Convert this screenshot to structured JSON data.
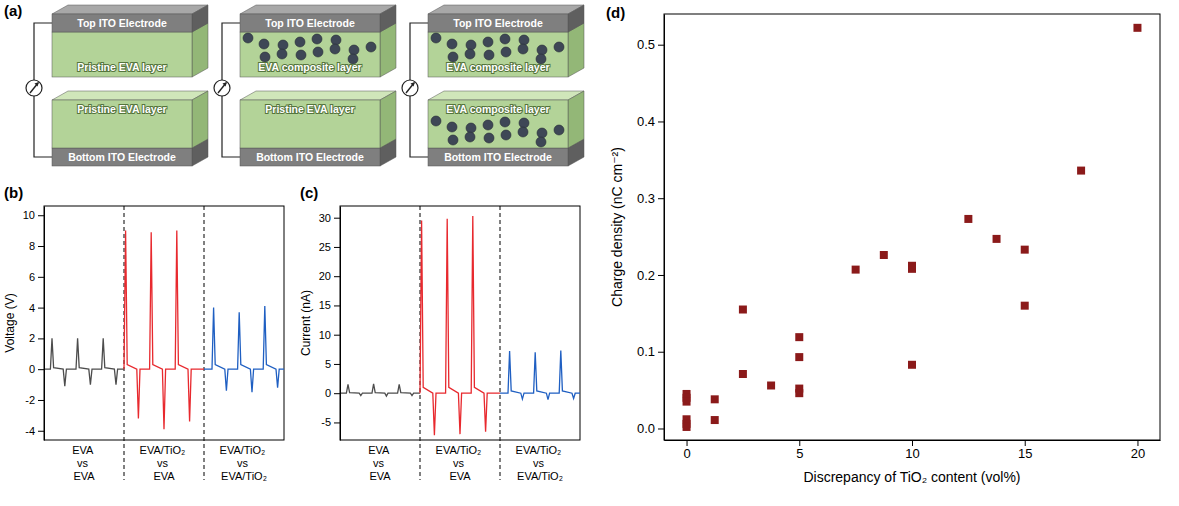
{
  "diagram": {
    "label": "(a)",
    "top_electrode": "Top ITO Electrode",
    "bottom_electrode": "Bottom ITO Electrode",
    "devices": [
      {
        "top_layer": {
          "text": "Pristine EVA layer",
          "particles": false
        },
        "bottom_layer": {
          "text": "Pristine EVA layer",
          "particles": false
        }
      },
      {
        "top_layer": {
          "text": "EVA composite layer",
          "particles": true
        },
        "bottom_layer": {
          "text": "Pristine EVA layer",
          "particles": false
        }
      },
      {
        "top_layer": {
          "text": "EVA composite layer",
          "particles": true
        },
        "bottom_layer": {
          "text": "EVA composite layer",
          "particles": true
        }
      }
    ]
  },
  "chart_data": [
    {
      "type": "line",
      "label": "(b)",
      "y_label": "Voltage (V)",
      "categories": [
        "EVA vs EVA",
        "EVA/TiO₂ vs EVA",
        "EVA/TiO₂ vs EVA/TiO₂"
      ],
      "xlim": [
        0,
        30
      ],
      "ylim": [
        -4.6,
        10.6
      ],
      "yticks": [
        -4,
        -2,
        0,
        2,
        4,
        6,
        8,
        10
      ],
      "tick_labels": "y",
      "series": [
        {
          "color": "#4d4d4d",
          "x": [
            0,
            0.8,
            1.0,
            1.2,
            2.4,
            2.6,
            2.8,
            4.0,
            4.2,
            4.4,
            5.6,
            5.8,
            6.0,
            7.2,
            7.4,
            7.6,
            8.8,
            9.0,
            9.2,
            10
          ],
          "values": [
            0,
            0,
            2.0,
            0.1,
            0,
            -1.1,
            0,
            0,
            2.0,
            0.1,
            0,
            -1.0,
            0,
            0,
            2.0,
            0.1,
            0,
            -1.0,
            0,
            0
          ]
        },
        {
          "color": "#e8292e",
          "x": [
            10,
            10.2,
            10.4,
            11.6,
            11.8,
            12.0,
            13.2,
            13.4,
            13.6,
            14.8,
            15.0,
            15.2,
            16.4,
            16.6,
            16.8,
            18.0,
            18.2,
            18.4,
            20
          ],
          "values": [
            0,
            9.0,
            0.3,
            0,
            -3.2,
            0,
            0,
            8.9,
            0.3,
            0,
            -3.9,
            0,
            0,
            9.0,
            0.3,
            0,
            -3.4,
            0,
            0
          ]
        },
        {
          "color": "#1f5fc2",
          "x": [
            20,
            21.0,
            21.2,
            21.4,
            22.6,
            22.8,
            23.0,
            24.2,
            24.4,
            24.6,
            25.8,
            26.0,
            26.2,
            27.4,
            27.6,
            27.8,
            29.0,
            29.2,
            29.4,
            30
          ],
          "values": [
            0,
            0,
            4.0,
            0.3,
            0,
            -1.4,
            0,
            0,
            3.7,
            0.3,
            0,
            -1.5,
            0,
            0,
            4.1,
            0.3,
            0,
            -1.2,
            0,
            0
          ]
        }
      ]
    },
    {
      "type": "line",
      "label": "(c)",
      "y_label": "Current (nA)",
      "categories": [
        "EVA vs EVA",
        "EVA/TiO₂ vs EVA",
        "EVA/TiO₂ vs EVA/TiO₂"
      ],
      "xlim": [
        0,
        30
      ],
      "ylim": [
        -8,
        32
      ],
      "yticks": [
        -5,
        0,
        5,
        10,
        15,
        20,
        25,
        30
      ],
      "tick_labels": "y",
      "series": [
        {
          "color": "#4d4d4d",
          "x": [
            0,
            0.8,
            1.0,
            1.2,
            2.4,
            2.6,
            2.8,
            4.0,
            4.2,
            4.4,
            5.6,
            5.8,
            6.0,
            7.2,
            7.4,
            7.6,
            8.8,
            9.0,
            9.2,
            10
          ],
          "values": [
            0,
            0,
            1.5,
            0.1,
            0,
            -0.4,
            0,
            0,
            1.6,
            0.1,
            0,
            -0.5,
            0,
            0,
            1.5,
            0.1,
            0,
            -0.4,
            0,
            0
          ]
        },
        {
          "color": "#e8292e",
          "x": [
            10,
            10.2,
            10.4,
            11.6,
            11.8,
            12.0,
            13.2,
            13.4,
            13.6,
            14.8,
            15.0,
            15.2,
            16.4,
            16.6,
            16.8,
            18.0,
            18.2,
            18.4,
            20
          ],
          "values": [
            0,
            29.5,
            1.0,
            0,
            -7.2,
            0,
            0,
            29.8,
            1.0,
            0,
            -7.0,
            0,
            0,
            30.3,
            1.0,
            0,
            -6.6,
            0,
            0
          ]
        },
        {
          "color": "#1f5fc2",
          "x": [
            20,
            21.0,
            21.2,
            21.4,
            22.6,
            22.8,
            23.0,
            24.2,
            24.4,
            24.6,
            25.8,
            26.0,
            26.2,
            27.4,
            27.6,
            27.8,
            29.0,
            29.2,
            29.4,
            30
          ],
          "values": [
            0,
            0,
            7.2,
            0.4,
            0,
            -1.0,
            0,
            0,
            7.0,
            0.4,
            0,
            -1.1,
            0,
            0,
            7.3,
            0.4,
            0,
            -0.9,
            0,
            0
          ]
        }
      ]
    },
    {
      "type": "scatter",
      "label": "(d)",
      "x_label": "Discrepancy of TiO₂ content (vol%)",
      "y_label": "Charge density (nC cm⁻²)",
      "color": "#8b1a1a",
      "marker": "square",
      "x": [
        0,
        0,
        0,
        0,
        0,
        0,
        1.25,
        1.25,
        2.5,
        2.5,
        3.75,
        5,
        5,
        5,
        5,
        7.5,
        8.75,
        10,
        10,
        10,
        12.5,
        13.75,
        15,
        15,
        17.5,
        20
      ],
      "values": [
        0.045,
        0.04,
        0.035,
        0.012,
        0.006,
        0.002,
        0.038,
        0.011,
        0.155,
        0.071,
        0.056,
        0.119,
        0.093,
        0.052,
        0.046,
        0.207,
        0.226,
        0.212,
        0.208,
        0.083,
        0.273,
        0.247,
        0.233,
        0.16,
        0.336,
        0.522
      ],
      "xlim": [
        -1,
        21
      ],
      "xticks": [
        0,
        5,
        10,
        15,
        20
      ],
      "ylim": [
        -0.015,
        0.54
      ],
      "yticks": [
        {
          "value": 0,
          "label": "0.0"
        },
        0.1,
        0.2,
        0.3,
        0.4,
        0.5
      ]
    }
  ]
}
